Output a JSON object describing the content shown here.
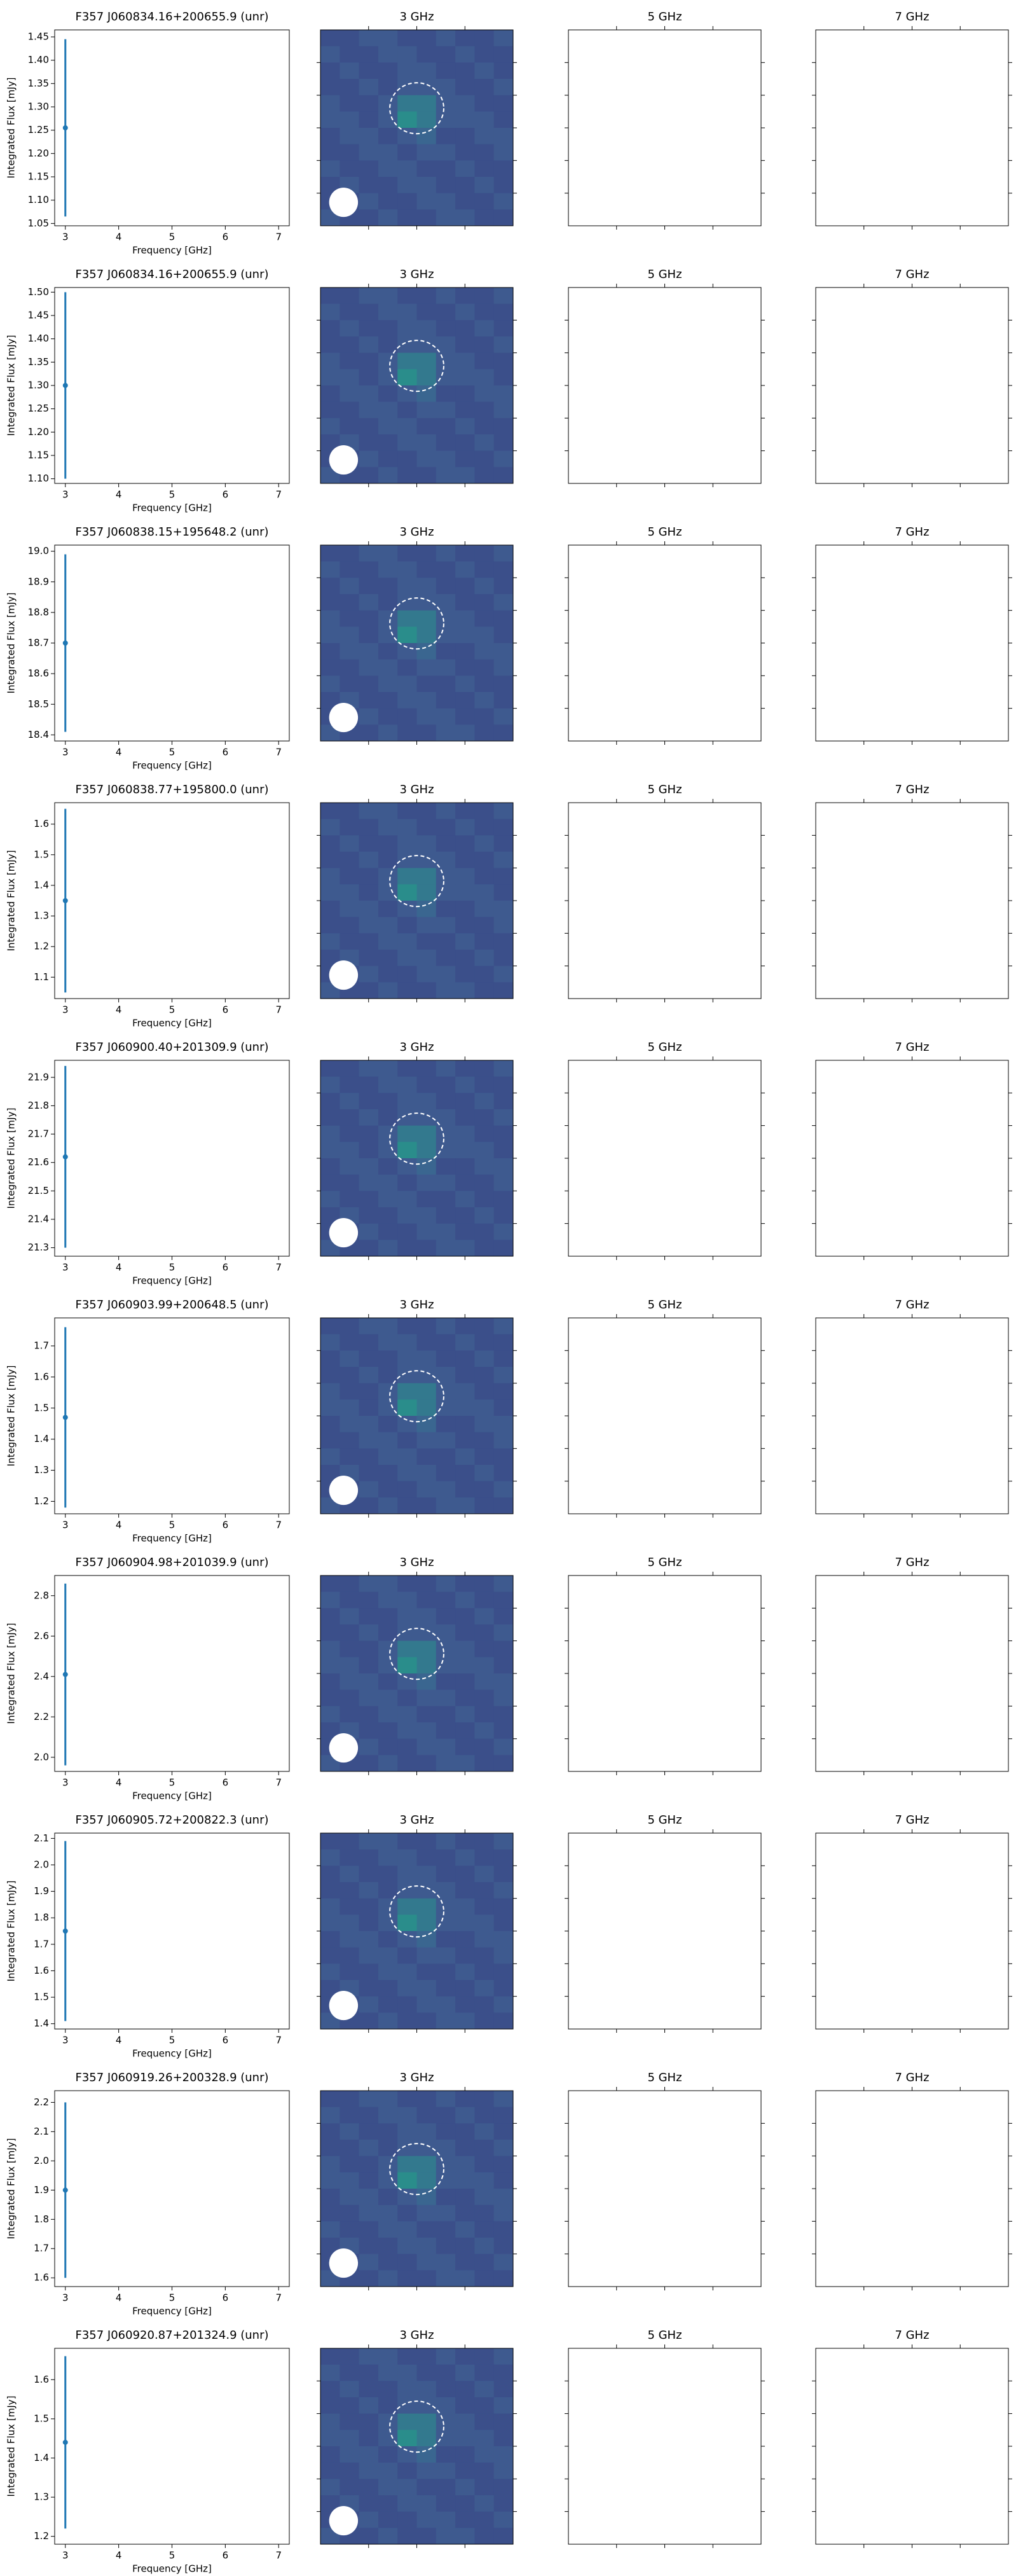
{
  "chart_data": [
    {
      "type": "errorbar",
      "title": "F357 J060834.16+200655.9 (unr)",
      "xlabel": "Frequency [GHz]",
      "ylabel": "Integrated Flux [mJy]",
      "color": "#1f77b4",
      "x": [
        3
      ],
      "values": [
        1.255
      ],
      "errors": [
        0.19
      ],
      "xlim": [
        2.8,
        7.2
      ],
      "xticks": [
        3,
        4,
        5,
        6,
        7
      ],
      "ylim": [
        1.045,
        1.465
      ],
      "yticks": [
        {
          "value": 1.05,
          "label": "1.05"
        },
        {
          "value": 1.1,
          "label": "1.10"
        },
        {
          "value": 1.15,
          "label": "1.15"
        },
        {
          "value": 1.2,
          "label": "1.20"
        },
        {
          "value": 1.25,
          "label": "1.25"
        },
        {
          "value": 1.3,
          "label": "1.30"
        },
        {
          "value": 1.35,
          "label": "1.35"
        },
        {
          "value": 1.4,
          "label": "1.40"
        },
        {
          "value": 1.45,
          "label": "1.45"
        }
      ]
    },
    {
      "type": "image",
      "title": "3 GHz"
    },
    {
      "type": "empty",
      "title": "5 GHz"
    },
    {
      "type": "empty",
      "title": "7 GHz"
    },
    {
      "type": "errorbar",
      "title": "F357 J060834.16+200655.9 (unr)",
      "xlabel": "Frequency [GHz]",
      "ylabel": "Integrated Flux [mJy]",
      "color": "#1f77b4",
      "x": [
        3
      ],
      "values": [
        1.3
      ],
      "errors": [
        0.2
      ],
      "xlim": [
        2.8,
        7.2
      ],
      "xticks": [
        3,
        4,
        5,
        6,
        7
      ],
      "ylim": [
        1.09,
        1.51
      ],
      "yticks": [
        {
          "value": 1.1,
          "label": "1.10"
        },
        {
          "value": 1.15,
          "label": "1.15"
        },
        {
          "value": 1.2,
          "label": "1.20"
        },
        {
          "value": 1.25,
          "label": "1.25"
        },
        {
          "value": 1.3,
          "label": "1.30"
        },
        {
          "value": 1.35,
          "label": "1.35"
        },
        {
          "value": 1.4,
          "label": "1.40"
        },
        {
          "value": 1.45,
          "label": "1.45"
        },
        {
          "value": 1.5,
          "label": "1.50"
        }
      ]
    },
    {
      "type": "image",
      "title": "3 GHz"
    },
    {
      "type": "empty",
      "title": "5 GHz"
    },
    {
      "type": "empty",
      "title": "7 GHz"
    },
    {
      "type": "errorbar",
      "title": "F357 J060838.15+195648.2 (unr)",
      "xlabel": "Frequency [GHz]",
      "ylabel": "Integrated Flux [mJy]",
      "color": "#1f77b4",
      "x": [
        3
      ],
      "values": [
        18.7
      ],
      "errors": [
        0.29
      ],
      "xlim": [
        2.8,
        7.2
      ],
      "xticks": [
        3,
        4,
        5,
        6,
        7
      ],
      "ylim": [
        18.38,
        19.02
      ],
      "yticks": [
        18.4,
        18.5,
        18.6,
        18.7,
        18.8,
        18.9,
        {
          "value": 19,
          "label": "19.0"
        }
      ]
    },
    {
      "type": "image",
      "title": "3 GHz"
    },
    {
      "type": "empty",
      "title": "5 GHz"
    },
    {
      "type": "empty",
      "title": "7 GHz"
    },
    {
      "type": "errorbar",
      "title": "F357 J060838.77+195800.0 (unr)",
      "xlabel": "Frequency [GHz]",
      "ylabel": "Integrated Flux [mJy]",
      "color": "#1f77b4",
      "x": [
        3
      ],
      "values": [
        1.35
      ],
      "errors": [
        0.3
      ],
      "xlim": [
        2.8,
        7.2
      ],
      "xticks": [
        3,
        4,
        5,
        6,
        7
      ],
      "ylim": [
        1.03,
        1.67
      ],
      "yticks": [
        1.1,
        1.2,
        1.3,
        1.4,
        1.5,
        1.6
      ]
    },
    {
      "type": "image",
      "title": "3 GHz"
    },
    {
      "type": "empty",
      "title": "5 GHz"
    },
    {
      "type": "empty",
      "title": "7 GHz"
    },
    {
      "type": "errorbar",
      "title": "F357 J060900.40+201309.9 (unr)",
      "xlabel": "Frequency [GHz]",
      "ylabel": "Integrated Flux [mJy]",
      "color": "#1f77b4",
      "x": [
        3
      ],
      "values": [
        21.62
      ],
      "errors": [
        0.32
      ],
      "xlim": [
        2.8,
        7.2
      ],
      "xticks": [
        3,
        4,
        5,
        6,
        7
      ],
      "ylim": [
        21.27,
        21.96
      ],
      "yticks": [
        21.3,
        21.4,
        21.5,
        21.6,
        21.7,
        21.8,
        21.9
      ]
    },
    {
      "type": "image",
      "title": "3 GHz"
    },
    {
      "type": "empty",
      "title": "5 GHz"
    },
    {
      "type": "empty",
      "title": "7 GHz"
    },
    {
      "type": "errorbar",
      "title": "F357 J060903.99+200648.5 (unr)",
      "xlabel": "Frequency [GHz]",
      "ylabel": "Integrated Flux [mJy]",
      "color": "#1f77b4",
      "x": [
        3
      ],
      "values": [
        1.47
      ],
      "errors": [
        0.29
      ],
      "xlim": [
        2.8,
        7.2
      ],
      "xticks": [
        3,
        4,
        5,
        6,
        7
      ],
      "ylim": [
        1.16,
        1.79
      ],
      "yticks": [
        1.2,
        1.3,
        1.4,
        1.5,
        1.6,
        1.7
      ]
    },
    {
      "type": "image",
      "title": "3 GHz"
    },
    {
      "type": "empty",
      "title": "5 GHz"
    },
    {
      "type": "empty",
      "title": "7 GHz"
    },
    {
      "type": "errorbar",
      "title": "F357 J060904.98+201039.9 (unr)",
      "xlabel": "Frequency [GHz]",
      "ylabel": "Integrated Flux [mJy]",
      "color": "#1f77b4",
      "x": [
        3
      ],
      "values": [
        2.41
      ],
      "errors": [
        0.45
      ],
      "xlim": [
        2.8,
        7.2
      ],
      "xticks": [
        3,
        4,
        5,
        6,
        7
      ],
      "ylim": [
        1.93,
        2.9
      ],
      "yticks": [
        {
          "value": 2,
          "label": "2.0"
        },
        2.2,
        2.4,
        2.6,
        2.8
      ]
    },
    {
      "type": "image",
      "title": "3 GHz"
    },
    {
      "type": "empty",
      "title": "5 GHz"
    },
    {
      "type": "empty",
      "title": "7 GHz"
    },
    {
      "type": "errorbar",
      "title": "F357 J060905.72+200822.3 (unr)",
      "xlabel": "Frequency [GHz]",
      "ylabel": "Integrated Flux [mJy]",
      "color": "#1f77b4",
      "x": [
        3
      ],
      "values": [
        1.75
      ],
      "errors": [
        0.34
      ],
      "xlim": [
        2.8,
        7.2
      ],
      "xticks": [
        3,
        4,
        5,
        6,
        7
      ],
      "ylim": [
        1.38,
        2.12
      ],
      "yticks": [
        1.4,
        1.5,
        1.6,
        1.7,
        1.8,
        1.9,
        {
          "value": 2,
          "label": "2.0"
        },
        2.1
      ]
    },
    {
      "type": "image",
      "title": "3 GHz"
    },
    {
      "type": "empty",
      "title": "5 GHz"
    },
    {
      "type": "empty",
      "title": "7 GHz"
    },
    {
      "type": "errorbar",
      "title": "F357 J060919.26+200328.9 (unr)",
      "xlabel": "Frequency [GHz]",
      "ylabel": "Integrated Flux [mJy]",
      "color": "#1f77b4",
      "x": [
        3
      ],
      "values": [
        1.9
      ],
      "errors": [
        0.3
      ],
      "xlim": [
        2.8,
        7.2
      ],
      "xticks": [
        3,
        4,
        5,
        6,
        7
      ],
      "ylim": [
        1.57,
        2.24
      ],
      "yticks": [
        1.6,
        1.7,
        1.8,
        1.9,
        {
          "value": 2,
          "label": "2.0"
        },
        2.1,
        2.2
      ]
    },
    {
      "type": "image",
      "title": "3 GHz"
    },
    {
      "type": "empty",
      "title": "5 GHz"
    },
    {
      "type": "empty",
      "title": "7 GHz"
    },
    {
      "type": "errorbar",
      "title": "F357 J060920.87+201324.9 (unr)",
      "xlabel": "Frequency [GHz]",
      "ylabel": "Integrated Flux [mJy]",
      "color": "#1f77b4",
      "x": [
        3
      ],
      "values": [
        1.44
      ],
      "errors": [
        0.22
      ],
      "xlim": [
        2.8,
        7.2
      ],
      "xticks": [
        3,
        4,
        5,
        6,
        7
      ],
      "ylim": [
        1.18,
        1.68
      ],
      "yticks": [
        1.2,
        1.3,
        1.4,
        1.5,
        1.6
      ]
    },
    {
      "type": "image",
      "title": "3 GHz"
    },
    {
      "type": "empty",
      "title": "5 GHz"
    },
    {
      "type": "empty",
      "title": "7 GHz"
    }
  ]
}
